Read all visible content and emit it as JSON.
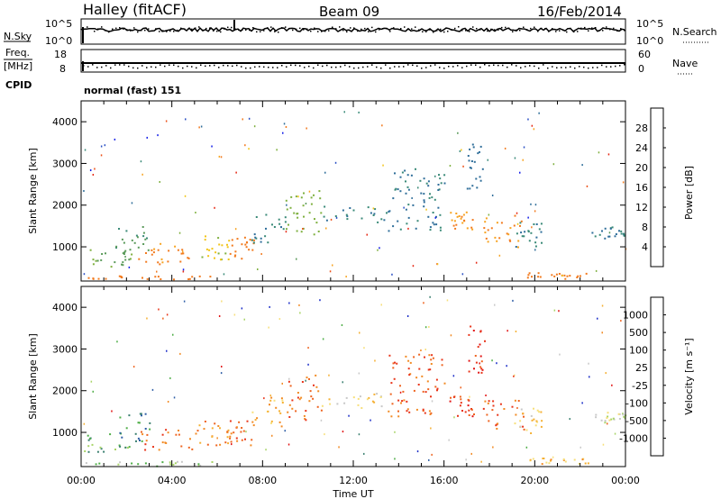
{
  "header": {
    "station": "Halley (fitACF)",
    "beam": "Beam 09",
    "date": "16/Feb/2014"
  },
  "panels": {
    "nsky": {
      "label": "N.Sky",
      "tick_top": "10^5",
      "tick_bottom": "10^0",
      "right_label": "N.Search",
      "right_tick_top": "10^5",
      "right_tick_bottom": "10^0"
    },
    "freq": {
      "label_line1": "Freq.",
      "label_line2": "[MHz]",
      "tick_top": "18",
      "tick_bottom": "8",
      "right_label": "Nave",
      "right_tick_top": "60",
      "right_tick_bottom": "0"
    },
    "cpid": {
      "label": "CPID",
      "value": "normal (fast) 151"
    }
  },
  "chart_data": [
    {
      "type": "heatmap",
      "name": "power",
      "ylabel": "Slant Range [km]",
      "xlabel": "",
      "ylim": [
        180,
        4500
      ],
      "xlim": [
        0,
        24
      ],
      "ytick_labels": [
        "1000",
        "2000",
        "3000",
        "4000"
      ],
      "yticks": [
        1000,
        2000,
        3000,
        4000
      ],
      "colorbar": {
        "label": "Power [dB]",
        "range": [
          0,
          32
        ],
        "tick_labels": [
          "4",
          "8",
          "12",
          "16",
          "20",
          "24",
          "28"
        ],
        "ticks": [
          4,
          8,
          12,
          16,
          20,
          24,
          28
        ],
        "colors": [
          "#1520e8",
          "#2a4fc4",
          "#2f6e9a",
          "#3a8a78",
          "#5a9a5a",
          "#7fb040",
          "#f2c418",
          "#f7a320",
          "#f27a1e",
          "#ec4f16",
          "#e62814"
        ]
      },
      "scatter_regions": [
        {
          "t0": 0.0,
          "t1": 2.2,
          "r0": 500,
          "r1": 1000,
          "level": 14
        },
        {
          "t0": 1.5,
          "t1": 3.0,
          "r0": 800,
          "r1": 1500,
          "level": 12
        },
        {
          "t0": 2.5,
          "t1": 5.2,
          "r0": 600,
          "r1": 1100,
          "level": 24
        },
        {
          "t0": 5.0,
          "t1": 6.5,
          "r0": 700,
          "r1": 1300,
          "level": 18
        },
        {
          "t0": 6.5,
          "t1": 7.6,
          "r0": 700,
          "r1": 1300,
          "level": 25
        },
        {
          "t0": 7.5,
          "t1": 9.0,
          "r0": 1100,
          "r1": 1900,
          "level": 8
        },
        {
          "t0": 9.0,
          "t1": 10.6,
          "r0": 1300,
          "r1": 2400,
          "level": 16
        },
        {
          "t0": 10.6,
          "t1": 13.5,
          "r0": 1600,
          "r1": 2000,
          "level": 8
        },
        {
          "t0": 13.5,
          "t1": 16.0,
          "r0": 1400,
          "r1": 2900,
          "level": 7
        },
        {
          "t0": 16.2,
          "t1": 17.3,
          "r0": 1400,
          "r1": 1900,
          "level": 24
        },
        {
          "t0": 17.0,
          "t1": 17.8,
          "r0": 2400,
          "r1": 3600,
          "level": 6
        },
        {
          "t0": 17.7,
          "t1": 19.5,
          "r0": 1000,
          "r1": 1800,
          "level": 24
        },
        {
          "t0": 19.0,
          "t1": 20.3,
          "r0": 1000,
          "r1": 1600,
          "level": 8
        },
        {
          "t0": 19.5,
          "t1": 22.5,
          "r0": 250,
          "r1": 400,
          "level": 26
        },
        {
          "t0": 22.5,
          "t1": 24.0,
          "r0": 1200,
          "r1": 1500,
          "level": 8
        },
        {
          "t0": 0.0,
          "t1": 6.0,
          "r0": 200,
          "r1": 320,
          "level": 26
        }
      ]
    },
    {
      "type": "heatmap",
      "name": "velocity",
      "ylabel": "Slant Range [km]",
      "xlabel": "Time UT",
      "ylim": [
        180,
        4500
      ],
      "xlim": [
        0,
        24
      ],
      "ytick_labels": [
        "1000",
        "2000",
        "3000",
        "4000"
      ],
      "yticks": [
        1000,
        2000,
        3000,
        4000
      ],
      "xtick_labels": [
        "00:00",
        "04:00",
        "08:00",
        "12:00",
        "16:00",
        "20:00",
        "00:00"
      ],
      "xticks": [
        0,
        4,
        8,
        12,
        16,
        20,
        24
      ],
      "colorbar": {
        "label": "Velocity [m s⁻¹]",
        "tick_labels": [
          "1000",
          "500",
          "100",
          "25",
          "-25",
          "-100",
          "-500",
          "-1000"
        ],
        "colors": [
          "#1c2ec8",
          "#2f5ea6",
          "#3b8070",
          "#4fae48",
          "#a8d468",
          "#c8c8c8",
          "#f7df7a",
          "#f5b033",
          "#f28a23",
          "#ee6420",
          "#e8351a",
          "#e21414"
        ]
      },
      "scatter_regions": [
        {
          "t0": 0.0,
          "t1": 2.2,
          "r0": 500,
          "r1": 1000,
          "level": 3
        },
        {
          "t0": 1.5,
          "t1": 3.0,
          "r0": 800,
          "r1": 1500,
          "level": 2
        },
        {
          "t0": 2.5,
          "t1": 5.2,
          "r0": 600,
          "r1": 1100,
          "level": 9
        },
        {
          "t0": 5.0,
          "t1": 6.5,
          "r0": 700,
          "r1": 1300,
          "level": 8
        },
        {
          "t0": 6.5,
          "t1": 7.6,
          "r0": 700,
          "r1": 1300,
          "level": 9
        },
        {
          "t0": 7.5,
          "t1": 9.0,
          "r0": 1100,
          "r1": 1900,
          "level": 7
        },
        {
          "t0": 9.0,
          "t1": 10.6,
          "r0": 1300,
          "r1": 2400,
          "level": 9
        },
        {
          "t0": 10.6,
          "t1": 13.5,
          "r0": 1600,
          "r1": 2000,
          "level": 6
        },
        {
          "t0": 13.5,
          "t1": 16.0,
          "r0": 1400,
          "r1": 2900,
          "level": 9
        },
        {
          "t0": 16.2,
          "t1": 17.3,
          "r0": 1400,
          "r1": 1900,
          "level": 10
        },
        {
          "t0": 17.0,
          "t1": 17.8,
          "r0": 2400,
          "r1": 3600,
          "level": 10
        },
        {
          "t0": 17.7,
          "t1": 19.5,
          "r0": 1000,
          "r1": 1800,
          "level": 9
        },
        {
          "t0": 19.0,
          "t1": 20.3,
          "r0": 1000,
          "r1": 1600,
          "level": 6
        },
        {
          "t0": 19.5,
          "t1": 22.5,
          "r0": 250,
          "r1": 400,
          "level": 7
        },
        {
          "t0": 22.5,
          "t1": 24.0,
          "r0": 1200,
          "r1": 1500,
          "level": 5
        },
        {
          "t0": 0.0,
          "t1": 6.0,
          "r0": 200,
          "r1": 320,
          "level": 4
        }
      ]
    }
  ]
}
